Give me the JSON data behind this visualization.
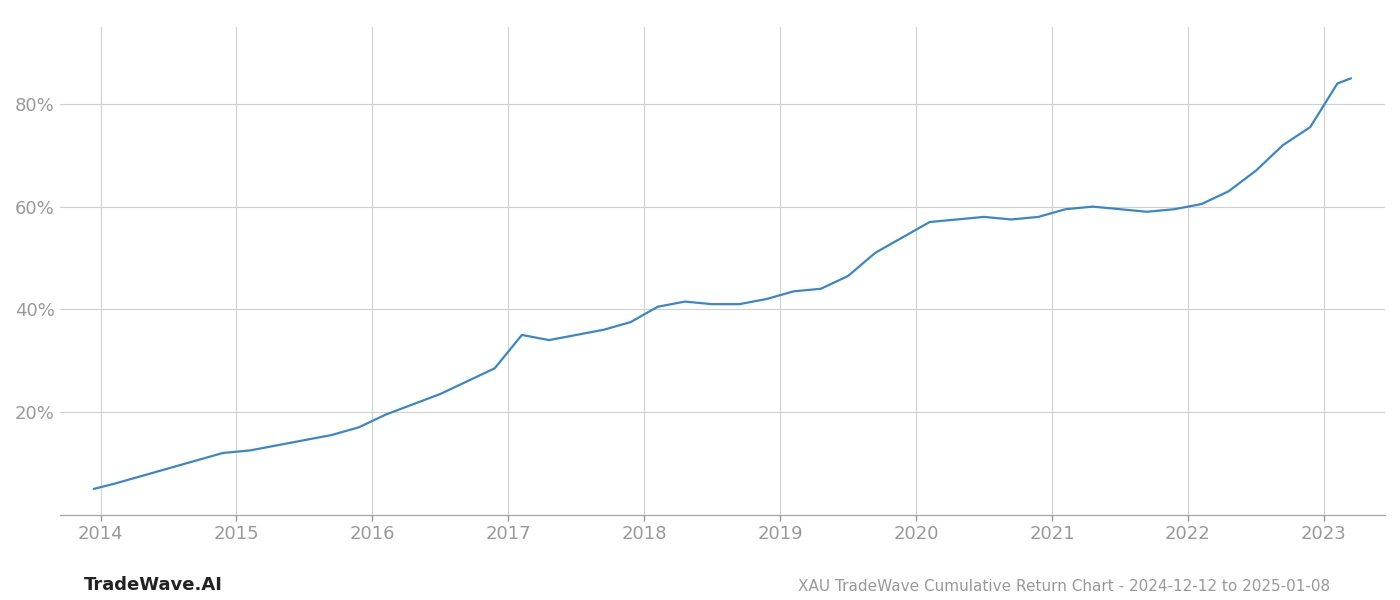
{
  "title": "XAU TradeWave Cumulative Return Chart - 2024-12-12 to 2025-01-08",
  "watermark": "TradeWave.AI",
  "line_color": "#3a87c8",
  "background_color": "#ffffff",
  "grid_color": "#d0d0d0",
  "years": [
    2013.95,
    2014.1,
    2014.3,
    2014.5,
    2014.7,
    2014.9,
    2015.1,
    2015.3,
    2015.5,
    2015.7,
    2015.9,
    2016.1,
    2016.3,
    2016.5,
    2016.7,
    2016.9,
    2017.1,
    2017.3,
    2017.5,
    2017.7,
    2017.9,
    2018.1,
    2018.3,
    2018.5,
    2018.7,
    2018.9,
    2019.1,
    2019.3,
    2019.5,
    2019.7,
    2019.9,
    2020.1,
    2020.3,
    2020.5,
    2020.7,
    2020.9,
    2021.1,
    2021.3,
    2021.5,
    2021.7,
    2021.9,
    2022.1,
    2022.3,
    2022.5,
    2022.7,
    2022.9,
    2023.1,
    2023.2
  ],
  "values": [
    5.0,
    6.0,
    7.5,
    9.0,
    10.5,
    12.0,
    12.5,
    13.5,
    14.5,
    15.5,
    17.0,
    19.5,
    21.5,
    23.5,
    26.0,
    28.5,
    35.0,
    34.0,
    35.0,
    36.0,
    37.5,
    40.5,
    41.5,
    41.0,
    41.0,
    42.0,
    43.5,
    44.0,
    46.5,
    51.0,
    54.0,
    57.0,
    57.5,
    58.0,
    57.5,
    58.0,
    59.5,
    60.0,
    59.5,
    59.0,
    59.5,
    60.5,
    63.0,
    67.0,
    72.0,
    75.5,
    84.0,
    85.0
  ],
  "yticks": [
    20,
    40,
    60,
    80
  ],
  "xticks": [
    2014,
    2015,
    2016,
    2017,
    2018,
    2019,
    2020,
    2021,
    2022,
    2023
  ],
  "xlim": [
    2013.7,
    2023.45
  ],
  "ylim": [
    0,
    95
  ],
  "line_width": 1.6,
  "tick_color": "#999999",
  "title_color": "#999999",
  "watermark_color": "#222222",
  "title_fontsize": 11,
  "watermark_fontsize": 13,
  "tick_fontsize": 13
}
